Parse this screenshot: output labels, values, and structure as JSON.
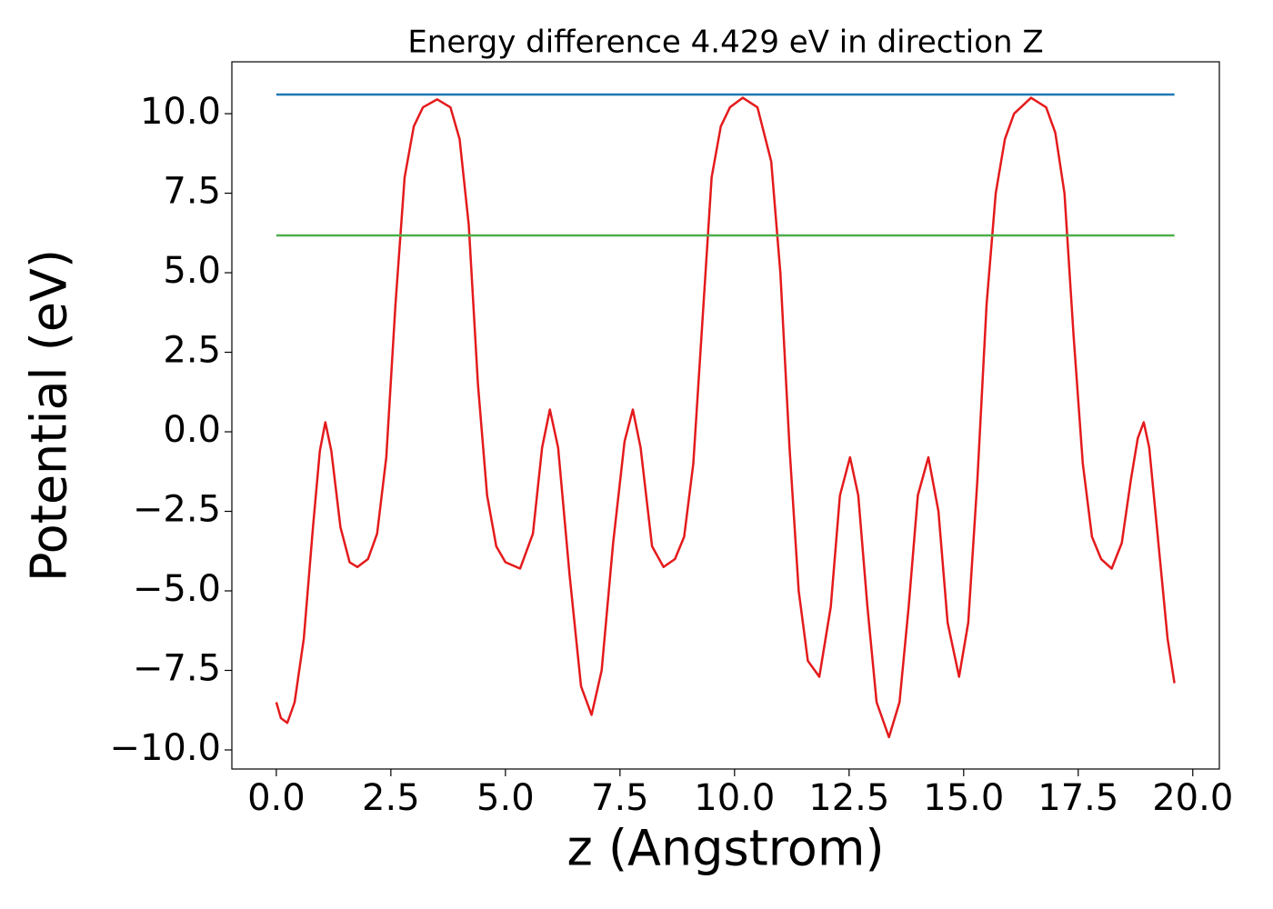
{
  "chart_data": {
    "type": "line",
    "title": "Energy difference 4.429 eV in direction Z",
    "xlabel": "z (Angstrom)",
    "ylabel": "Potential (eV)",
    "xlim": [
      -0.97,
      20.58
    ],
    "ylim": [
      -10.6,
      11.63
    ],
    "xticks": [
      {
        "value": 0,
        "label": "0.0"
      },
      2.5,
      {
        "value": 5,
        "label": "5.0"
      },
      7.5,
      {
        "value": 10,
        "label": "10.0"
      },
      12.5,
      {
        "value": 15,
        "label": "15.0"
      },
      17.5,
      {
        "value": 20,
        "label": "20.0"
      }
    ],
    "yticks": [
      {
        "value": -10,
        "label": "−10.0"
      },
      {
        "value": -7.5,
        "label": "−7.5"
      },
      {
        "value": -5,
        "label": "−5.0"
      },
      {
        "value": -2.5,
        "label": "−2.5"
      },
      {
        "value": 0,
        "label": "0.0"
      },
      2.5,
      {
        "value": 5,
        "label": "5.0"
      },
      7.5,
      {
        "value": 10,
        "label": "10.0"
      }
    ],
    "series": [
      {
        "color": "#e41a1c",
        "x": [
          0,
          0.1,
          0.24,
          0.4,
          0.6,
          0.8,
          0.95,
          1.07,
          1.2,
          1.4,
          1.6,
          1.77,
          2.0,
          2.2,
          2.4,
          2.6,
          2.8,
          3.0,
          3.2,
          3.51,
          3.8,
          4.0,
          4.2,
          4.4,
          4.6,
          4.8,
          5.0,
          5.32,
          5.6,
          5.8,
          5.97,
          6.15,
          6.4,
          6.65,
          6.88,
          7.1,
          7.35,
          7.6,
          7.78,
          7.95,
          8.2,
          8.45,
          8.7,
          8.9,
          9.1,
          9.3,
          9.5,
          9.7,
          9.9,
          10.18,
          10.5,
          10.8,
          11.0,
          11.2,
          11.4,
          11.6,
          11.85,
          12.1,
          12.3,
          12.52,
          12.7,
          12.9,
          13.1,
          13.37,
          13.6,
          13.8,
          14.0,
          14.23,
          14.45,
          14.65,
          14.9,
          15.1,
          15.3,
          15.5,
          15.7,
          15.9,
          16.1,
          16.47,
          16.8,
          17.0,
          17.2,
          17.4,
          17.6,
          17.8,
          18.0,
          18.23,
          18.45,
          18.65,
          18.8,
          18.93,
          19.05,
          19.25,
          19.45,
          19.6
        ],
        "values": [
          -8.5,
          -9.0,
          -9.15,
          -8.5,
          -6.5,
          -3.0,
          -0.6,
          0.3,
          -0.6,
          -3.0,
          -4.1,
          -4.25,
          -4.0,
          -3.2,
          -0.8,
          4.0,
          8.0,
          9.6,
          10.2,
          10.45,
          10.2,
          9.2,
          6.5,
          1.5,
          -2.0,
          -3.6,
          -4.1,
          -4.3,
          -3.2,
          -0.5,
          0.7,
          -0.5,
          -4.5,
          -8.0,
          -8.9,
          -7.5,
          -3.5,
          -0.3,
          0.7,
          -0.5,
          -3.6,
          -4.25,
          -4.0,
          -3.3,
          -1.0,
          3.5,
          8.0,
          9.6,
          10.2,
          10.5,
          10.2,
          8.5,
          5.0,
          -0.5,
          -5.0,
          -7.2,
          -7.7,
          -5.5,
          -2.0,
          -0.8,
          -2.0,
          -5.5,
          -8.5,
          -9.6,
          -8.5,
          -5.5,
          -2.0,
          -0.8,
          -2.5,
          -6.0,
          -7.7,
          -6.0,
          -1.5,
          4.0,
          7.5,
          9.2,
          10.0,
          10.5,
          10.2,
          9.4,
          7.5,
          3.0,
          -1.0,
          -3.3,
          -4.0,
          -4.3,
          -3.5,
          -1.5,
          -0.2,
          0.3,
          -0.5,
          -3.5,
          -6.5,
          -7.9
        ]
      },
      {
        "color": "#1f77b4",
        "x": [
          0,
          19.6
        ],
        "values": [
          10.6,
          10.6
        ]
      },
      {
        "color": "#4daf4a",
        "x": [
          0,
          19.6
        ],
        "values": [
          6.171,
          6.171
        ]
      }
    ]
  }
}
